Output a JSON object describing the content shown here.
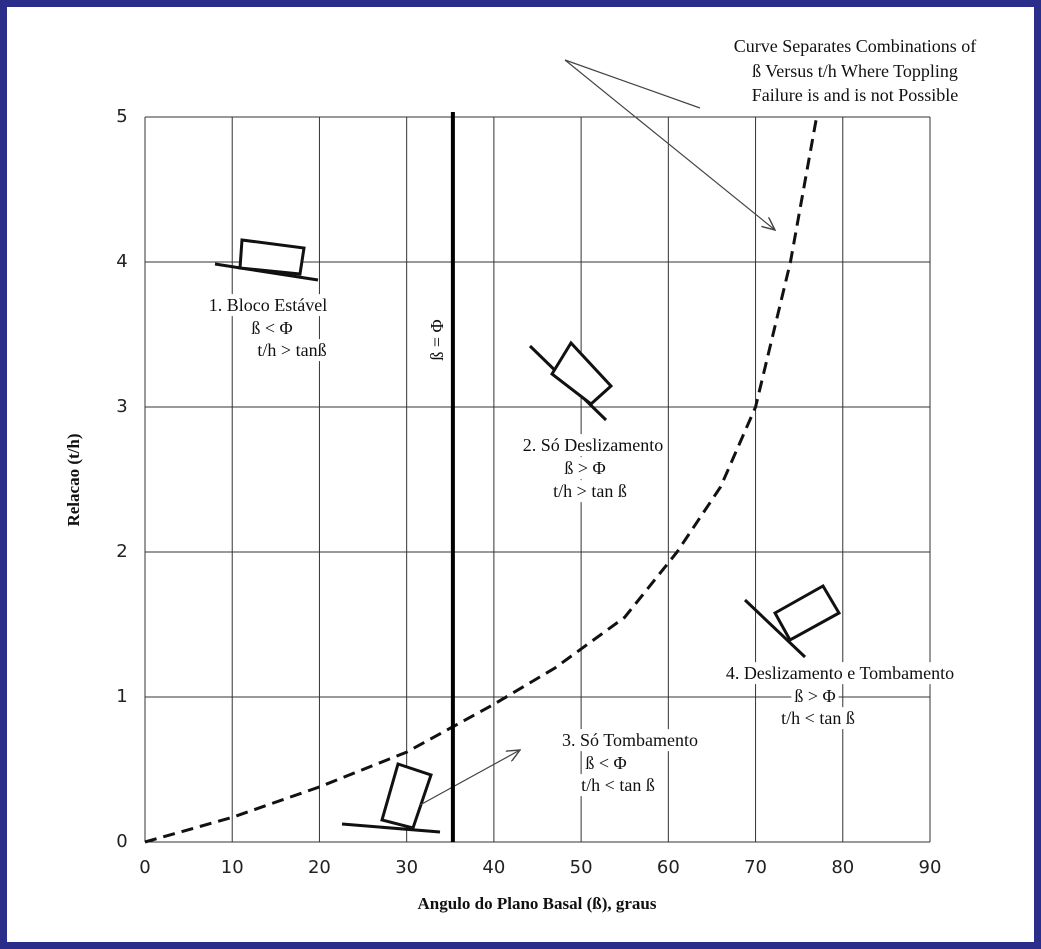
{
  "chart_data": {
    "type": "line",
    "xlabel": "Angulo do Plano Basal (ß), graus",
    "ylabel": "Relacao (t/h)",
    "x": [
      0,
      10,
      20,
      30,
      40,
      47,
      55,
      61,
      66,
      70,
      74,
      77
    ],
    "values": [
      0,
      0.17,
      0.38,
      0.62,
      0.95,
      1.2,
      1.55,
      2.0,
      2.45,
      3.0,
      4.0,
      5.0
    ],
    "color": "#111111",
    "line_style": "dashed",
    "xlim": [
      0,
      90
    ],
    "ylim": [
      0,
      5
    ],
    "xticks": [
      0,
      10,
      20,
      30,
      40,
      50,
      60,
      70,
      80,
      90
    ],
    "yticks": [
      0,
      1,
      2,
      3,
      4,
      5
    ],
    "grid": true,
    "vline": {
      "value": 35.3,
      "label": "ß = Φ"
    },
    "annotations": [
      {
        "lines": [
          "Curve Separates Combinations of",
          "ß Versus t/h Where Toppling",
          "Failure is and is not Possible"
        ]
      },
      {
        "lines": [
          "1. Bloco Estável",
          "ß < Φ",
          "t/h > tanß"
        ]
      },
      {
        "lines": [
          "2. Só Deslizamento",
          "ß > Φ",
          "t/h > tan ß"
        ]
      },
      {
        "lines": [
          "3. Só Tombamento",
          "ß <  Φ",
          "t/h < tan ß"
        ]
      },
      {
        "lines": [
          "4. Deslizamento e Tombamento",
          "ß > Φ",
          "t/h < tan ß"
        ]
      }
    ]
  }
}
